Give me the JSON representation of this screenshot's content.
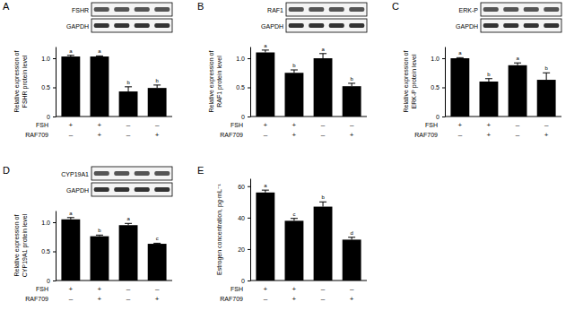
{
  "chart_data": [
    {
      "panel": "A",
      "type": "bar",
      "color": "#000000",
      "blot": [
        "FSHR",
        "GAPDH"
      ],
      "y_label": [
        "Relative expression of",
        "FSHR protein level"
      ],
      "categories": [
        null,
        null,
        null,
        null
      ],
      "values": [
        1.03,
        1.03,
        0.43,
        0.49
      ],
      "errors": [
        0.02,
        0.01,
        0.08,
        0.05
      ],
      "significance": [
        "a",
        "a",
        "b",
        "b"
      ],
      "conditions": [
        {
          "name": "FSH",
          "marks": [
            "+",
            "+",
            "–",
            "–"
          ]
        },
        {
          "name": "RAF709",
          "marks": [
            "–",
            "+",
            "–",
            "+"
          ]
        }
      ],
      "ylim": [
        0,
        1.2
      ],
      "yticks": [
        0,
        0.5,
        {
          "value": 1,
          "label": "1.0"
        }
      ]
    },
    {
      "panel": "B",
      "type": "bar",
      "color": "#000000",
      "blot": [
        "RAF1",
        "GAPDH"
      ],
      "y_label": [
        "Relative expression of",
        "RAF1 protein level"
      ],
      "categories": [
        null,
        null,
        null,
        null
      ],
      "values": [
        1.1,
        0.75,
        1.0,
        0.52
      ],
      "errors": [
        0.04,
        0.05,
        0.08,
        0.05
      ],
      "significance": [
        "a",
        "b",
        "a",
        "b"
      ],
      "conditions": [
        {
          "name": "FSH",
          "marks": [
            "+",
            "+",
            "–",
            "–"
          ]
        },
        {
          "name": "RAF709",
          "marks": [
            "–",
            "+",
            "–",
            "+"
          ]
        }
      ],
      "ylim": [
        0,
        1.2
      ],
      "yticks": [
        0,
        0.5,
        {
          "value": 1,
          "label": "1.0"
        }
      ]
    },
    {
      "panel": "C",
      "type": "bar",
      "color": "#000000",
      "blot": [
        "ERK-P",
        "GAPDH"
      ],
      "y_label": [
        "Relative expression of",
        "ERK-P protein level"
      ],
      "categories": [
        null,
        null,
        null,
        null
      ],
      "values": [
        1.0,
        0.6,
        0.88,
        0.63
      ],
      "errors": [
        0.01,
        0.05,
        0.04,
        0.12
      ],
      "significance": [
        "a",
        "b",
        "a",
        "b"
      ],
      "conditions": [
        {
          "name": "FSH",
          "marks": [
            "+",
            "+",
            "–",
            "–"
          ]
        },
        {
          "name": "RAF709",
          "marks": [
            "–",
            "+",
            "–",
            "+"
          ]
        }
      ],
      "ylim": [
        0,
        1.2
      ],
      "yticks": [
        0,
        0.5,
        {
          "value": 1,
          "label": "1.0"
        }
      ]
    },
    {
      "panel": "D",
      "type": "bar",
      "color": "#000000",
      "blot": [
        "CYP19A1",
        "GAPDH"
      ],
      "y_label": [
        "Relative expression of",
        "CYP19A1 protein level"
      ],
      "categories": [
        null,
        null,
        null,
        null
      ],
      "values": [
        1.05,
        0.76,
        0.95,
        0.63
      ],
      "errors": [
        0.03,
        0.02,
        0.03,
        0.01
      ],
      "significance": [
        "a",
        "b",
        "a",
        "c"
      ],
      "conditions": [
        {
          "name": "FSH",
          "marks": [
            "+",
            "+",
            "–",
            "–"
          ]
        },
        {
          "name": "RAF709",
          "marks": [
            "–",
            "+",
            "–",
            "+"
          ]
        }
      ],
      "ylim": [
        0,
        1.2
      ],
      "yticks": [
        0,
        0.5,
        {
          "value": 1,
          "label": "1.0"
        }
      ]
    },
    {
      "panel": "E",
      "type": "bar",
      "color": "#000000",
      "y_label": [
        "Estrogen concentration, pg·mL⁻¹"
      ],
      "categories": [
        null,
        null,
        null,
        null
      ],
      "values": [
        56,
        38,
        47,
        26
      ],
      "errors": [
        1.5,
        1.5,
        3,
        1.5
      ],
      "significance": [
        "a",
        "c",
        "b",
        "d"
      ],
      "conditions": [
        {
          "name": "FSH",
          "marks": [
            "+",
            "+",
            "–",
            "–"
          ]
        },
        {
          "name": "RAF709",
          "marks": [
            "–",
            "+",
            "–",
            "+"
          ]
        }
      ],
      "ylim": [
        0,
        65
      ],
      "yticks": [
        0,
        20,
        40,
        60
      ]
    }
  ]
}
